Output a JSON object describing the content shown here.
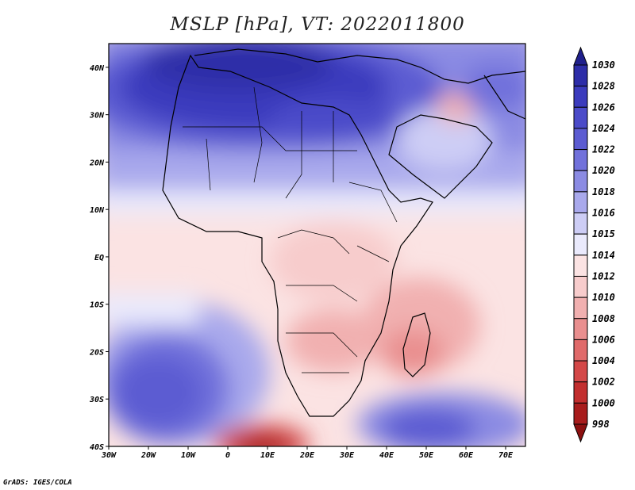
{
  "title": "MSLP [hPa], VT: 2022011800",
  "credit": "GrADS: IGES/COLA",
  "map": {
    "lon_labels": [
      "30W",
      "20W",
      "10W",
      "0",
      "10E",
      "20E",
      "30E",
      "40E",
      "50E",
      "60E",
      "70E"
    ],
    "lat_labels": [
      "40N",
      "30N",
      "20N",
      "10N",
      "EQ",
      "10S",
      "20S",
      "30S",
      "40S"
    ],
    "lon_range": [
      -30,
      75
    ],
    "lat_range": [
      -40,
      45
    ]
  },
  "colorbar": {
    "labels": [
      "1030",
      "1028",
      "1026",
      "1024",
      "1022",
      "1020",
      "1018",
      "1016",
      "1015",
      "1014",
      "1012",
      "1010",
      "1008",
      "1006",
      "1004",
      "1002",
      "1000",
      "998"
    ],
    "colors": [
      "#20208c",
      "#2d2da8",
      "#3b3bbd",
      "#4b4bc9",
      "#5c5cd2",
      "#7171db",
      "#8b8be3",
      "#a9a9ec",
      "#cdcdf5",
      "#eaeafc",
      "#fbe3e3",
      "#f7cccc",
      "#f1b0b0",
      "#e98f8f",
      "#e06a6a",
      "#d44848",
      "#c22e2e",
      "#a81c1c",
      "#8c1010"
    ]
  }
}
